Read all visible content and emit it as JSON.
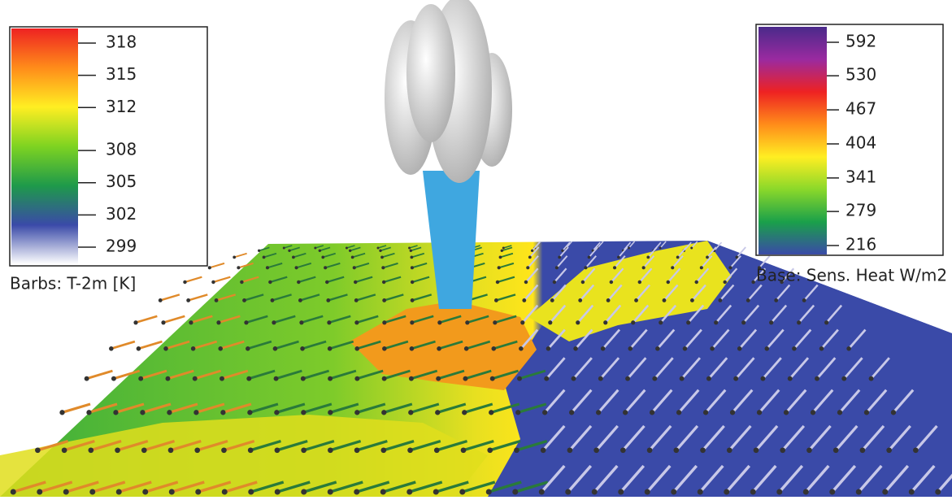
{
  "left_legend": {
    "label": "Barbs: T-2m [K]",
    "range": [
      299,
      318
    ],
    "ticks": [
      299,
      302,
      305,
      308,
      312,
      315,
      318
    ],
    "colors": [
      "#ffffff",
      "#3a4aa8",
      "#1e9a4a",
      "#7ed321",
      "#ffee22",
      "#ff8c1a",
      "#ee2222"
    ]
  },
  "right_legend": {
    "label": "Base: Sens. Heat W/m2",
    "range": [
      216,
      592
    ],
    "ticks": [
      216,
      279,
      341,
      404,
      467,
      530,
      592
    ],
    "colors": [
      "#3a4aa8",
      "#1aa04a",
      "#8ad82a",
      "#ffee22",
      "#ff8c1a",
      "#ee2222",
      "#9a2aa0",
      "#4a2a8a"
    ]
  }
}
